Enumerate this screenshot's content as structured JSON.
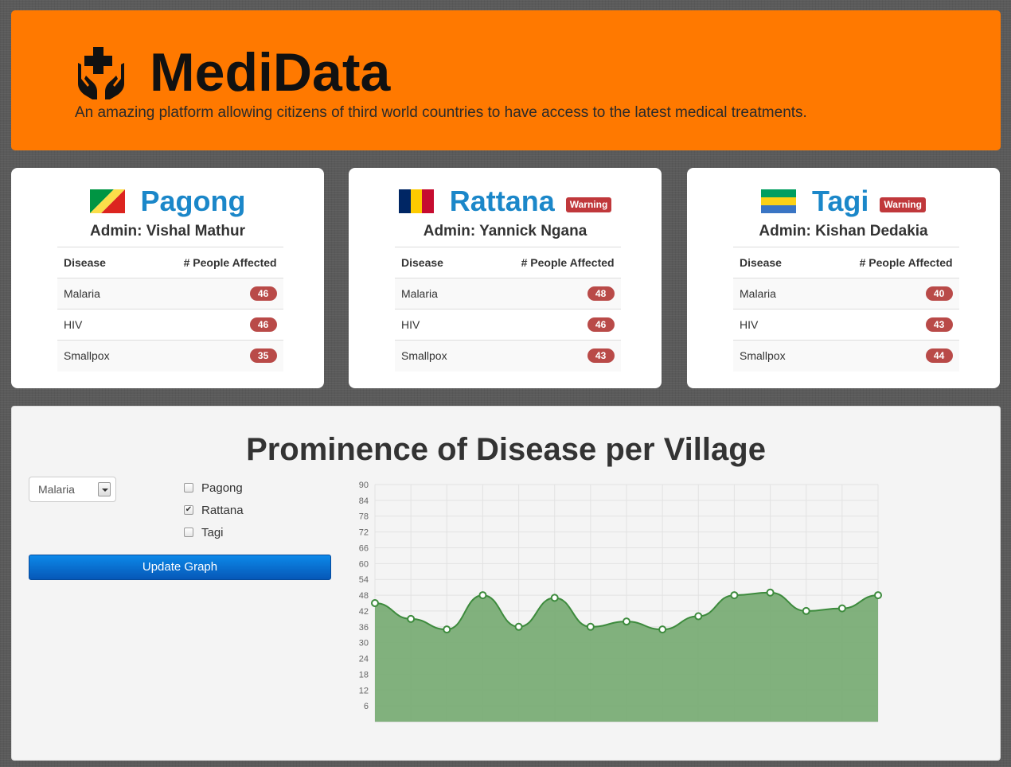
{
  "header": {
    "title": "MediData",
    "tagline": "An amazing platform allowing citizens of third world countries to have access to the latest medical treatments.",
    "icon": "medical-hands-icon"
  },
  "villages": [
    {
      "name": "Pagong",
      "flag": "congo-flag",
      "warning": "",
      "admin": "Admin: Vishal Mathur",
      "headers": [
        "Disease",
        "# People Affected"
      ],
      "rows": [
        {
          "disease": "Malaria",
          "count": "46"
        },
        {
          "disease": "HIV",
          "count": "46"
        },
        {
          "disease": "Smallpox",
          "count": "35"
        }
      ]
    },
    {
      "name": "Rattana",
      "flag": "chad-flag",
      "warning": "Warning",
      "admin": "Admin: Yannick Ngana",
      "headers": [
        "Disease",
        "# People Affected"
      ],
      "rows": [
        {
          "disease": "Malaria",
          "count": "48"
        },
        {
          "disease": "HIV",
          "count": "46"
        },
        {
          "disease": "Smallpox",
          "count": "43"
        }
      ]
    },
    {
      "name": "Tagi",
      "flag": "gabon-flag",
      "warning": "Warning",
      "admin": "Admin: Kishan Dedakia",
      "headers": [
        "Disease",
        "# People Affected"
      ],
      "rows": [
        {
          "disease": "Malaria",
          "count": "40"
        },
        {
          "disease": "HIV",
          "count": "43"
        },
        {
          "disease": "Smallpox",
          "count": "44"
        }
      ]
    }
  ],
  "graph": {
    "title": "Prominence of Disease per Village",
    "disease_select": "Malaria",
    "checkboxes": [
      {
        "label": "Pagong",
        "checked": false
      },
      {
        "label": "Rattana",
        "checked": true
      },
      {
        "label": "Tagi",
        "checked": false
      }
    ],
    "button_label": "Update Graph"
  },
  "chart_data": {
    "type": "area",
    "x": [
      1,
      2,
      3,
      4,
      5,
      6,
      7,
      8,
      9,
      10,
      11,
      12,
      13,
      14,
      15
    ],
    "series": [
      {
        "values": [
          45,
          39,
          35,
          48,
          36,
          47,
          36,
          38,
          35,
          40,
          48,
          49,
          42,
          43,
          48
        ]
      }
    ],
    "ylim": [
      0,
      90
    ],
    "yticks": [
      6,
      12,
      18,
      24,
      30,
      36,
      42,
      48,
      54,
      60,
      66,
      72,
      78,
      84,
      90
    ],
    "grid": true,
    "color": "#7aad76",
    "line_color": "#3d8b3d"
  }
}
